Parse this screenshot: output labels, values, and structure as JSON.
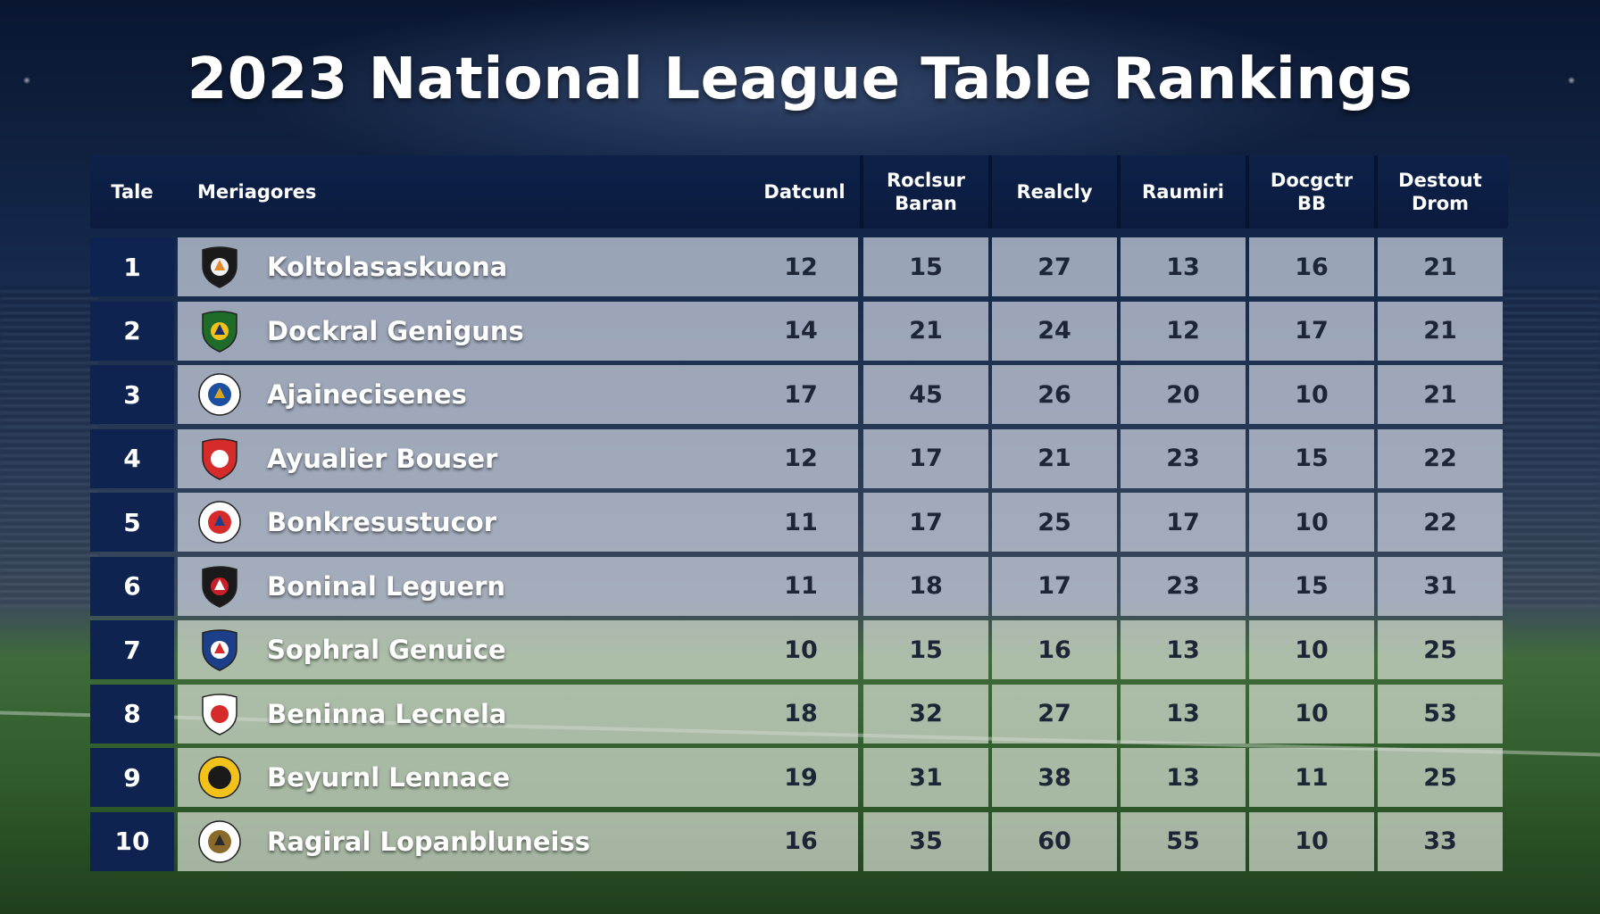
{
  "title": "2023 National League Table Rankings",
  "chart_data": {
    "type": "table",
    "columns": [
      "Tale",
      "Meriagores",
      "Datcunl",
      "Roclsur Baran",
      "Realcly",
      "Raumiri",
      "Docgctr BB",
      "Destout Drom"
    ],
    "rows": [
      {
        "rank": "1",
        "team": "Koltolasaskuona",
        "values": [
          12,
          15,
          27,
          13,
          16,
          21
        ]
      },
      {
        "rank": "2",
        "team": "Dockral Geniguns",
        "values": [
          14,
          21,
          24,
          12,
          17,
          21
        ]
      },
      {
        "rank": "3",
        "team": "Ajainecisenes",
        "values": [
          17,
          45,
          26,
          20,
          10,
          21
        ]
      },
      {
        "rank": "4",
        "team": "Ayualier Bouser",
        "values": [
          12,
          17,
          21,
          23,
          15,
          22
        ]
      },
      {
        "rank": "5",
        "team": "Bonkresustucor",
        "values": [
          11,
          17,
          25,
          17,
          10,
          22
        ]
      },
      {
        "rank": "6",
        "team": "Boninal Leguern",
        "values": [
          11,
          18,
          17,
          23,
          15,
          31
        ]
      },
      {
        "rank": "7",
        "team": "Sophral Genuice",
        "values": [
          10,
          15,
          16,
          13,
          10,
          25
        ]
      },
      {
        "rank": "8",
        "team": "Beninna Lecnela",
        "values": [
          18,
          32,
          27,
          13,
          10,
          53
        ]
      },
      {
        "rank": "9",
        "team": "Beyurnl Lennace",
        "values": [
          19,
          31,
          38,
          13,
          11,
          25
        ]
      },
      {
        "rank": "10",
        "team": "Ragiral Lopanbluneiss",
        "values": [
          16,
          35,
          60,
          55,
          10,
          33
        ]
      }
    ]
  },
  "badges": [
    {
      "icon": "black-shield-crest-icon",
      "bg": "#1a1a1a",
      "fg": "#f0f0f0",
      "accent": "#e08a2a"
    },
    {
      "icon": "green-yellow-shield-crest-icon",
      "bg": "#1f6b2a",
      "fg": "#f2c21b",
      "accent": "#1b2d6b"
    },
    {
      "icon": "round-blue-crest-icon",
      "bg": "#ffffff",
      "fg": "#1d4fa0",
      "accent": "#d9a51e"
    },
    {
      "icon": "red-white-shield-crest-icon",
      "bg": "#d62b2b",
      "fg": "#ffffff",
      "accent": "#ffffff"
    },
    {
      "icon": "round-white-red-crest-icon",
      "bg": "#ffffff",
      "fg": "#d62b2b",
      "accent": "#1d3f8a"
    },
    {
      "icon": "dark-red-shield-crest-icon",
      "bg": "#1a1a1a",
      "fg": "#c8202a",
      "accent": "#ffffff"
    },
    {
      "icon": "blue-white-shield-crest-icon",
      "bg": "#1d3f8a",
      "fg": "#ffffff",
      "accent": "#d62b2b"
    },
    {
      "icon": "red-crest-icon",
      "bg": "#ffffff",
      "fg": "#d62b2b",
      "accent": "#d62b2b"
    },
    {
      "icon": "round-yellow-black-crest-icon",
      "bg": "#f2c21b",
      "fg": "#1a1a1a",
      "accent": "#1a1a1a"
    },
    {
      "icon": "round-white-gold-crest-icon",
      "bg": "#ffffff",
      "fg": "#8a6a2a",
      "accent": "#2a2a2a"
    }
  ]
}
